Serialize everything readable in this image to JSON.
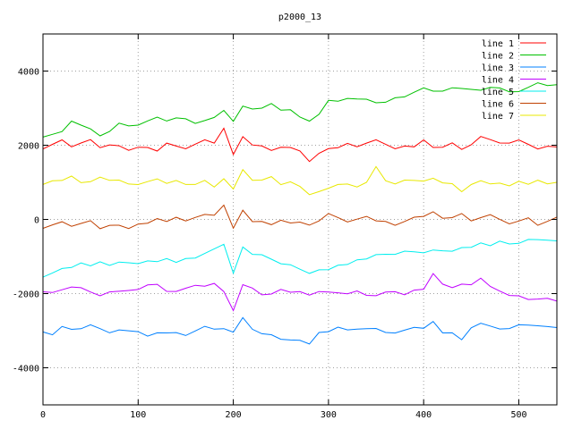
{
  "chart_data": {
    "type": "line",
    "title": "p2000_13",
    "xlabel": "",
    "ylabel": "",
    "xlim": [
      0,
      540
    ],
    "ylim": [
      -5000,
      5000
    ],
    "xticks": [
      0,
      100,
      200,
      300,
      400,
      500
    ],
    "yticks": [
      -4000,
      -2000,
      0,
      2000,
      4000
    ],
    "grid": true,
    "legend_position": "top-right",
    "x_start": 0,
    "x_step": 10,
    "series": [
      {
        "name": "line 1",
        "color": "#ff0000",
        "values": [
          1900,
          2000,
          2100,
          1900,
          2000,
          2100,
          1900,
          2000,
          2000,
          1900,
          2000,
          2000,
          1900,
          2100,
          2000,
          1900,
          2000,
          2100,
          2000,
          2400,
          1700,
          2200,
          2000,
          2000,
          1900,
          2000,
          2000,
          1900,
          1600,
          1800,
          1900,
          1900,
          2000,
          1900,
          2000,
          2100,
          2000,
          1900,
          2000,
          2000,
          2200,
          2000,
          2000,
          2100,
          1900,
          2000,
          2200,
          2100,
          2000,
          2000,
          2100,
          2000,
          1900,
          2000,
          2000
        ]
      },
      {
        "name": "line 2",
        "color": "#00c000",
        "values": [
          2200,
          2300,
          2400,
          2700,
          2600,
          2500,
          2300,
          2400,
          2600,
          2500,
          2500,
          2600,
          2700,
          2600,
          2700,
          2700,
          2600,
          2700,
          2800,
          3000,
          2700,
          3100,
          3000,
          3000,
          3100,
          2900,
          2900,
          2700,
          2600,
          2800,
          3200,
          3200,
          3300,
          3300,
          3300,
          3200,
          3200,
          3300,
          3300,
          3400,
          3500,
          3400,
          3400,
          3500,
          3500,
          3500,
          3500,
          3600,
          3600,
          3500,
          3500,
          3600,
          3700,
          3600,
          3600
        ]
      },
      {
        "name": "line 3",
        "color": "#0080ff",
        "values": [
          -3000,
          -3100,
          -2900,
          -3000,
          -3000,
          -2900,
          -3000,
          -3100,
          -3000,
          -3000,
          -3000,
          -3100,
          -3000,
          -3000,
          -3000,
          -3100,
          -3000,
          -2900,
          -3000,
          -3000,
          -3100,
          -2700,
          -3000,
          -3100,
          -3100,
          -3200,
          -3200,
          -3200,
          -3300,
          -3000,
          -3000,
          -2900,
          -3000,
          -3000,
          -3000,
          -3000,
          -3100,
          -3100,
          -3000,
          -2900,
          -2900,
          -2700,
          -3000,
          -3000,
          -3200,
          -2900,
          -2800,
          -2900,
          -3000,
          -3000,
          -2900,
          -2900,
          -2900,
          -2900,
          -2900
        ]
      },
      {
        "name": "line 4",
        "color": "#c000ff",
        "values": [
          -2000,
          -2000,
          -1900,
          -1800,
          -1800,
          -1900,
          -2000,
          -1900,
          -1900,
          -1900,
          -1900,
          -1800,
          -1800,
          -2000,
          -2000,
          -1900,
          -1800,
          -1800,
          -1700,
          -1900,
          -2400,
          -1700,
          -1800,
          -2000,
          -2000,
          -1900,
          -2000,
          -2000,
          -2100,
          -2000,
          -2000,
          -2000,
          -2000,
          -1900,
          -2000,
          -2000,
          -1900,
          -1900,
          -2000,
          -1900,
          -1900,
          -1500,
          -1800,
          -1900,
          -1800,
          -1800,
          -1600,
          -1800,
          -1900,
          -2000,
          -2000,
          -2100,
          -2100,
          -2100,
          -2200
        ]
      },
      {
        "name": "line 5",
        "color": "#00eeee",
        "values": [
          -1500,
          -1400,
          -1300,
          -1300,
          -1200,
          -1300,
          -1200,
          -1300,
          -1200,
          -1200,
          -1200,
          -1100,
          -1100,
          -1000,
          -1100,
          -1000,
          -1000,
          -900,
          -800,
          -700,
          -1500,
          -800,
          -1000,
          -1000,
          -1100,
          -1200,
          -1200,
          -1300,
          -1400,
          -1300,
          -1300,
          -1200,
          -1200,
          -1100,
          -1100,
          -1000,
          -1000,
          -1000,
          -900,
          -900,
          -900,
          -800,
          -800,
          -800,
          -700,
          -700,
          -600,
          -700,
          -600,
          -700,
          -700,
          -600,
          -600,
          -600,
          -600
        ]
      },
      {
        "name": "line 6",
        "color": "#c04000",
        "values": [
          -300,
          -200,
          -100,
          -200,
          -100,
          0,
          -200,
          -100,
          -100,
          -200,
          -100,
          -100,
          0,
          -100,
          0,
          -100,
          0,
          100,
          100,
          400,
          -200,
          300,
          0,
          0,
          -100,
          0,
          -100,
          -100,
          -200,
          -100,
          100,
          0,
          -100,
          0,
          100,
          0,
          0,
          -100,
          0,
          100,
          100,
          200,
          0,
          0,
          100,
          -100,
          0,
          100,
          0,
          -100,
          0,
          100,
          -100,
          0,
          100
        ]
      },
      {
        "name": "line 7",
        "color": "#e8e800",
        "values": [
          1000,
          1100,
          1100,
          1200,
          1000,
          1000,
          1100,
          1000,
          1000,
          900,
          900,
          1000,
          1100,
          1000,
          1100,
          1000,
          1000,
          1100,
          900,
          1100,
          800,
          1300,
          1000,
          1000,
          1100,
          900,
          1000,
          900,
          700,
          800,
          900,
          1000,
          1000,
          900,
          1000,
          1400,
          1000,
          900,
          1000,
          1000,
          1000,
          1100,
          1000,
          1000,
          800,
          1000,
          1100,
          1000,
          1000,
          900,
          1000,
          900,
          1000,
          900,
          950
        ]
      }
    ]
  }
}
